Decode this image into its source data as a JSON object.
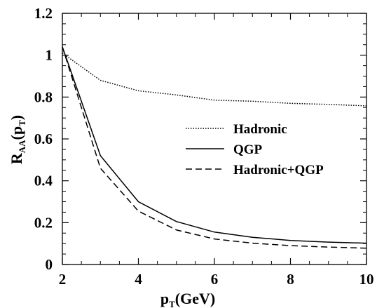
{
  "chart_data": {
    "type": "line",
    "title": "",
    "xlabel": {
      "main": "p",
      "sub": "T",
      "rest": "(GeV)"
    },
    "ylabel": {
      "R": "R",
      "sub": "AA",
      "open": "(p",
      "sub2": "T",
      "close": ")"
    },
    "xlim": [
      2,
      10
    ],
    "ylim": [
      0,
      1.2
    ],
    "xticks": [
      2,
      4,
      6,
      8,
      10
    ],
    "xtick_labels": [
      "2",
      "4",
      "6",
      "8",
      "10"
    ],
    "yticks": [
      0,
      0.2,
      0.4,
      0.6,
      0.8,
      1.0,
      1.2
    ],
    "ytick_labels": [
      "0",
      "0.2",
      "0.4",
      "0.6",
      "0.8",
      "1",
      "1.2"
    ],
    "grid": false,
    "legend_position": "center-right",
    "series": [
      {
        "name": "Hadronic",
        "style": "dotted",
        "x": [
          2,
          3,
          4,
          5,
          6,
          7,
          8,
          9,
          10
        ],
        "y": [
          1.01,
          0.88,
          0.83,
          0.81,
          0.785,
          0.78,
          0.77,
          0.765,
          0.758
        ]
      },
      {
        "name": "QGP",
        "style": "solid",
        "x": [
          2,
          3,
          4,
          5,
          6,
          7,
          8,
          9,
          10
        ],
        "y": [
          1.04,
          0.52,
          0.3,
          0.205,
          0.155,
          0.13,
          0.115,
          0.107,
          0.102
        ]
      },
      {
        "name": "Hadronic+QGP",
        "style": "dashed",
        "x": [
          2,
          3,
          4,
          5,
          6,
          7,
          8,
          9,
          10
        ],
        "y": [
          1.04,
          0.46,
          0.255,
          0.165,
          0.122,
          0.102,
          0.09,
          0.083,
          0.078
        ]
      }
    ]
  }
}
